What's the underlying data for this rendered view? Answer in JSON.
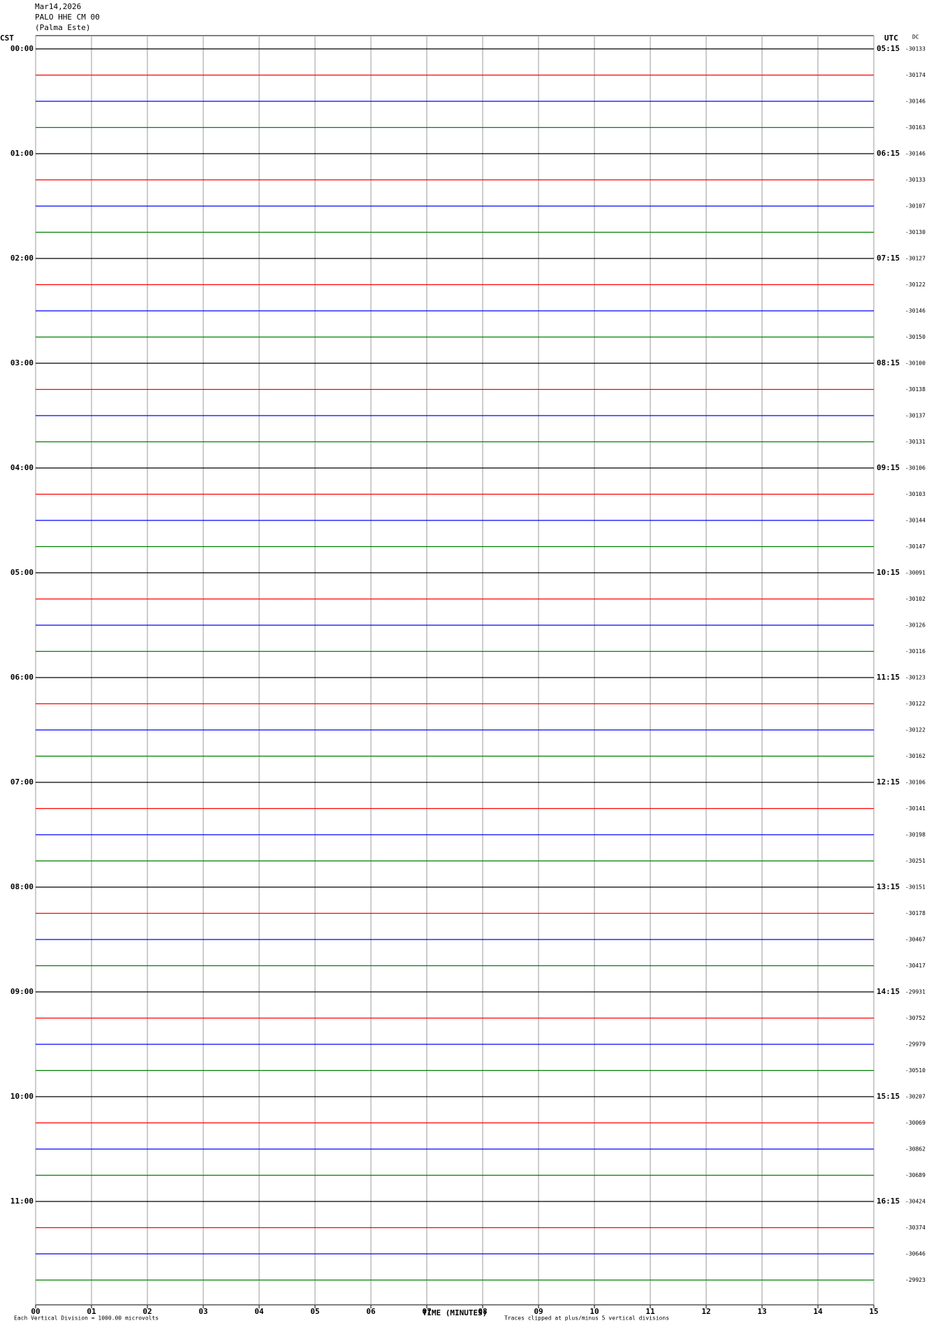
{
  "chart_data": {
    "type": "helicorder",
    "header": [
      "Mar14,2026",
      "PALO HHE CM 00",
      "(Palma Este)"
    ],
    "left_axis_title": "CST",
    "right_axis_title": "UTC",
    "dc_title": "DC",
    "cst_labels": [
      "00:00",
      "01:00",
      "02:00",
      "03:00",
      "04:00",
      "05:00",
      "06:00",
      "07:00",
      "08:00",
      "09:00",
      "10:00",
      "11:00"
    ],
    "utc_labels": [
      "05:15",
      "06:15",
      "07:15",
      "08:15",
      "09:15",
      "10:15",
      "11:15",
      "12:15",
      "13:15",
      "14:15",
      "15:15",
      "16:15"
    ],
    "dc": [
      -30133,
      -30174,
      -30146,
      -30163,
      -30146,
      -30133,
      -30107,
      -30130,
      -30127,
      -30122,
      -30146,
      -30150,
      -30100,
      -30138,
      -30137,
      -30131,
      -30106,
      -30103,
      -30144,
      -30147,
      -30091,
      -30102,
      -30126,
      -30116,
      -30123,
      -30122,
      -30122,
      -30162,
      -30106,
      -30141,
      -30198,
      -30251,
      -30151,
      -30178,
      -30467,
      -30417,
      -29931,
      -30752,
      -29979,
      -30510,
      -30207,
      -30069,
      -30862,
      -30689,
      -30424,
      -30374,
      -30646,
      -29923
    ],
    "colors": [
      "#000000",
      "#ff0000",
      "#0000ff",
      "#008000"
    ],
    "xlim": [
      0,
      15
    ],
    "xticks": [
      {
        "value": 0,
        "label": "00"
      },
      {
        "value": 1,
        "label": "01"
      },
      {
        "value": 2,
        "label": "02"
      },
      {
        "value": 3,
        "label": "03"
      },
      {
        "value": 4,
        "label": "04"
      },
      {
        "value": 5,
        "label": "05"
      },
      {
        "value": 6,
        "label": "06"
      },
      {
        "value": 7,
        "label": "07"
      },
      {
        "value": 8,
        "label": "08"
      },
      {
        "value": 9,
        "label": "09"
      },
      {
        "value": 10,
        "label": "10"
      },
      {
        "value": 11,
        "label": "11"
      },
      {
        "value": 12,
        "label": "12"
      },
      {
        "value": 13,
        "label": "13"
      },
      {
        "value": 14,
        "label": "14"
      },
      {
        "value": 15,
        "label": "15"
      }
    ],
    "xlabel": "TIME (MINUTES)",
    "note_left": "Each Vertical Division = 1000.00 microvolts",
    "note_right": "Traces clipped at plus/minus 5 vertical divisions",
    "grid": true
  }
}
